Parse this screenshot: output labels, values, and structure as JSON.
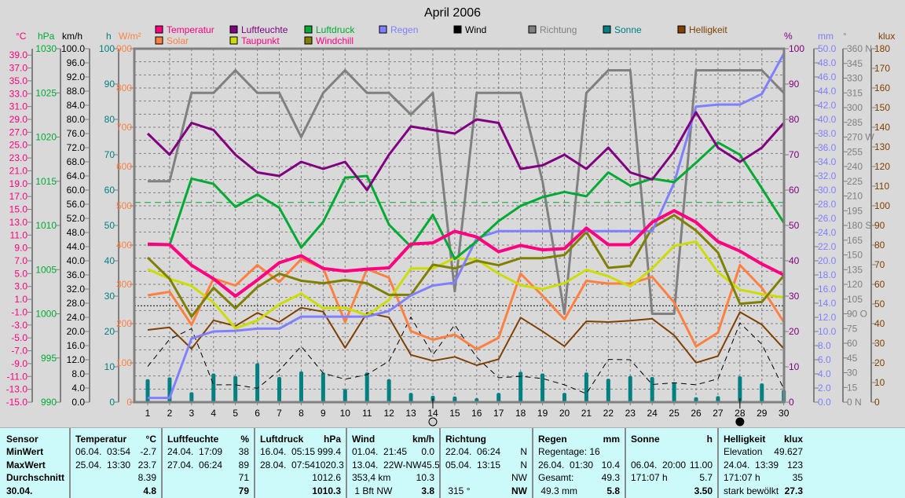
{
  "title": "April 2006",
  "chart_data": {
    "type": "line",
    "title": "April 2006",
    "x": [
      1,
      2,
      3,
      4,
      5,
      6,
      7,
      8,
      9,
      10,
      11,
      12,
      13,
      14,
      15,
      16,
      17,
      18,
      19,
      20,
      21,
      22,
      23,
      24,
      25,
      26,
      27,
      28,
      29,
      30
    ],
    "xlim": [
      1,
      30
    ],
    "grid": true,
    "legend_position": "top",
    "axes": {
      "temp": {
        "unit": "°C",
        "min": -15,
        "max": 40,
        "color": "#ff0080",
        "tick_labels": [
          "39.0",
          "37.0",
          "35.0",
          "33.0",
          "31.0",
          "29.0",
          "27.0",
          "25.0",
          "23.0",
          "21.0",
          "19.0",
          "17.0",
          "15.0",
          "13.0",
          "11.0",
          "9.0",
          "7.0",
          "5.0",
          "3.0",
          "1.0",
          "-1.0",
          "-3.0",
          "-5.0",
          "-7.0",
          "-9.0",
          "-11.0",
          "-13.0",
          "-15.0"
        ]
      },
      "pressure": {
        "unit": "hPa",
        "min": 990,
        "max": 1030,
        "color": "#00aa33",
        "tick_labels": [
          "1030",
          "1025",
          "1020",
          "1015",
          "1010",
          "1005",
          "1000",
          "995",
          "990"
        ]
      },
      "wind": {
        "unit": "km/h",
        "min": 0,
        "max": 100,
        "color": "#000000",
        "tick_labels": [
          "100.0",
          "96.0",
          "92.0",
          "88.0",
          "84.0",
          "80.0",
          "76.0",
          "72.0",
          "68.0",
          "64.0",
          "60.0",
          "56.0",
          "52.0",
          "48.0",
          "44.0",
          "40.0",
          "36.0",
          "32.0",
          "28.0",
          "24.0",
          "20.0",
          "16.0",
          "12.0",
          "8.0",
          "4.0",
          "0.0"
        ]
      },
      "sun": {
        "unit": "h",
        "min": 0,
        "max": 100,
        "color": "#008080",
        "tick_labels": [
          "100",
          "90",
          "80",
          "70",
          "60",
          "50",
          "40",
          "30",
          "20",
          "10",
          "0"
        ]
      },
      "solar": {
        "unit": "W/m²",
        "min": 0,
        "max": 900,
        "color": "#ff8040",
        "tick_labels": [
          "900",
          "800",
          "700",
          "600",
          "500",
          "400",
          "300",
          "200",
          "100",
          "0"
        ]
      },
      "humidity": {
        "unit": "%",
        "min": 0,
        "max": 100,
        "color": "#800080",
        "tick_labels": [
          "100",
          "90",
          "80",
          "70",
          "60",
          "50",
          "40",
          "30",
          "20",
          "10",
          "0"
        ]
      },
      "rain": {
        "unit": "mm",
        "min": 0,
        "max": 50,
        "color": "#8080ff",
        "tick_labels": [
          "50.0",
          "48.0",
          "46.0",
          "44.0",
          "42.0",
          "40.0",
          "38.0",
          "36.0",
          "34.0",
          "32.0",
          "30.0",
          "28.0",
          "26.0",
          "24.0",
          "22.0",
          "20.0",
          "18.0",
          "16.0",
          "14.0",
          "12.0",
          "10.0",
          "8.0",
          "6.0",
          "4.0",
          "2.0",
          "0.0"
        ]
      },
      "direction": {
        "unit": "°",
        "min": 0,
        "max": 360,
        "color": "#808080",
        "tick_labels": [
          "360 N",
          "345",
          "330",
          "315",
          "300",
          "285",
          "270 W",
          "255",
          "240",
          "225",
          "210",
          "195",
          "180 S",
          "165",
          "150",
          "135",
          "120",
          "105",
          "90 O",
          "75",
          "60",
          "45",
          "30",
          "15",
          "0   N"
        ]
      },
      "brightness": {
        "unit": "klux",
        "min": 0,
        "max": 180,
        "color": "#804000",
        "tick_labels": [
          "180",
          "170",
          "160",
          "150",
          "140",
          "130",
          "120",
          "110",
          "100",
          "90",
          "80",
          "70",
          "60",
          "50",
          "40",
          "30",
          "20",
          "10",
          "0"
        ]
      }
    },
    "series": [
      {
        "name": "Temperatur",
        "axis": "temp",
        "color": "#ff0080",
        "legend_text_color": "#ff0080",
        "style": "line",
        "values": [
          9.6,
          9.5,
          6.3,
          4.2,
          1.5,
          4.0,
          6.7,
          7.8,
          5.8,
          5.4,
          5.7,
          5.9,
          9.6,
          9.8,
          11.6,
          10.7,
          8.4,
          9.4,
          8.7,
          8.9,
          12.1,
          9.5,
          9.5,
          13.0,
          14.8,
          13.0,
          10.0,
          8.5,
          6.5,
          4.8
        ]
      },
      {
        "name": "Solar",
        "axis": "solar",
        "color": "#ff8040",
        "legend_text_color": "#ff8040",
        "style": "line",
        "values": [
          272,
          281,
          197,
          315,
          297,
          349,
          306,
          364,
          341,
          204,
          339,
          317,
          181,
          159,
          172,
          135,
          164,
          327,
          271,
          211,
          309,
          302,
          302,
          319,
          254,
          142,
          177,
          349,
          291,
          204
        ]
      },
      {
        "name": "Luftfeuchte",
        "axis": "humidity",
        "color": "#800080",
        "legend_text_color": "#800080",
        "style": "line",
        "values": [
          76,
          70,
          79,
          77,
          70,
          65,
          64,
          68,
          66,
          68,
          60,
          70,
          78,
          77,
          76,
          80,
          79,
          66,
          67,
          70,
          66,
          72,
          65,
          63,
          71,
          82,
          72,
          68,
          72,
          79
        ]
      },
      {
        "name": "Taupunkt",
        "axis": "temp",
        "color": "#ccdd00",
        "legend_text_color": "#ff0080",
        "style": "line",
        "values": [
          5.7,
          4.2,
          3.1,
          0.5,
          -3.5,
          -2.3,
          0.2,
          1.9,
          -0.4,
          -0.3,
          -1.5,
          0.9,
          5.8,
          5.8,
          7.4,
          7.2,
          5.0,
          3.2,
          2.6,
          3.5,
          5.6,
          4.6,
          3.0,
          5.8,
          9.3,
          10.0,
          5.2,
          2.5,
          1.8,
          1.3
        ]
      },
      {
        "name": "Luftdruck",
        "axis": "pressure",
        "color": "#00aa33",
        "legend_text_color": "#00aa33",
        "style": "line",
        "values": [
          1007.8,
          1007.8,
          1015.3,
          1014.7,
          1012.1,
          1013.5,
          1012.0,
          1007.5,
          1010.4,
          1015.4,
          1015.6,
          1010.1,
          1007.6,
          1011.2,
          1006.2,
          1008.2,
          1010.5,
          1012.2,
          1013.2,
          1013.8,
          1013.3,
          1016.0,
          1014.5,
          1015.3,
          1014.9,
          1017.1,
          1019.4,
          1018.0,
          1014.2,
          1010.3
        ]
      },
      {
        "name": "Windchill",
        "axis": "temp",
        "color": "#808000",
        "legend_text_color": "#ff0080",
        "style": "line",
        "values": [
          7.5,
          4.2,
          -1.7,
          2.8,
          -0.4,
          2.9,
          5.0,
          3.9,
          3.5,
          4.0,
          3.5,
          1.7,
          1.7,
          6.4,
          5.8,
          7.0,
          6.3,
          7.4,
          7.4,
          7.9,
          11.5,
          5.9,
          6.2,
          12.1,
          14.1,
          11.7,
          8.3,
          0.3,
          0.6,
          4.7
        ]
      },
      {
        "name": "Regen",
        "axis": "rain",
        "color": "#8080ff",
        "legend_text_color": "#8080ff",
        "style": "line",
        "values": [
          0.6,
          0.6,
          9.0,
          10.0,
          10.1,
          10.4,
          10.4,
          12.1,
          12.1,
          12.1,
          12.1,
          12.9,
          15.1,
          16.5,
          16.9,
          23.2,
          24.2,
          24.2,
          24.2,
          24.2,
          24.2,
          24.2,
          24.2,
          24.2,
          31.0,
          41.8,
          42.1,
          42.1,
          43.6,
          49.3
        ]
      },
      {
        "name": "Wind",
        "axis": "wind",
        "color": "#000000",
        "legend_text_color": "#000000",
        "style": "dashed",
        "values": [
          10.1,
          17.8,
          20.8,
          4.9,
          4.9,
          3.9,
          9.0,
          15.8,
          8.2,
          6.5,
          7.8,
          11.6,
          24.1,
          13.4,
          21.9,
          12.7,
          6.9,
          7.3,
          6.7,
          4.9,
          2.4,
          12.1,
          12.0,
          5.0,
          5.5,
          4.9,
          6.6,
          22.4,
          16.4,
          3.8
        ]
      },
      {
        "name": "Richtung",
        "axis": "direction",
        "color": "#808080",
        "legend_text_color": "#808080",
        "style": "line",
        "values": [
          225,
          225,
          315,
          315,
          338,
          315,
          315,
          270,
          315,
          338,
          315,
          315,
          293,
          315,
          113,
          315,
          315,
          315,
          225,
          90,
          315,
          338,
          338,
          90,
          90,
          338,
          338,
          338,
          338,
          315
        ]
      },
      {
        "name": "Sonne",
        "axis": "sun",
        "color": "#008080",
        "legend_text_color": "#008080",
        "style": "bar",
        "values": [
          6.5,
          7.0,
          2.8,
          8.1,
          7.4,
          11.0,
          7.1,
          8.7,
          8.4,
          3.7,
          8.4,
          6.5,
          2.6,
          1.8,
          1.6,
          1.1,
          2.6,
          8.6,
          8.1,
          2.6,
          8.4,
          6.6,
          7.4,
          7.1,
          5.6,
          1.4,
          1.7,
          7.3,
          5.3,
          3.5
        ]
      },
      {
        "name": "Helligkeit",
        "axis": "brightness",
        "color": "#804000",
        "legend_text_color": "#804000",
        "style": "line",
        "values": [
          36.8,
          38.1,
          27.2,
          41.7,
          38.8,
          45.5,
          40.8,
          48.1,
          46.1,
          27.7,
          45.5,
          43.2,
          24.1,
          21.1,
          23.1,
          18.8,
          21.9,
          43.1,
          36.1,
          28.5,
          41.2,
          40.8,
          41.5,
          42.5,
          34.1,
          20.1,
          23.5,
          45.9,
          39.5,
          27.3
        ]
      }
    ],
    "reference_lines": [
      {
        "axis": "pressure",
        "value": 1012.6,
        "color": "#00aa33"
      },
      {
        "axis": "temp",
        "value": 0,
        "color": "#000000"
      }
    ],
    "moon_phases": [
      {
        "day": 14,
        "phase": "full-moon"
      },
      {
        "day": 28,
        "phase": "new-moon"
      }
    ]
  },
  "table": {
    "columns": [
      {
        "label": "Sensor",
        "unit": "",
        "rows": [
          [
            "MinWert",
            ""
          ],
          [
            "MaxWert",
            ""
          ],
          [
            "Durchschnitt",
            ""
          ],
          [
            "30.04.",
            ""
          ]
        ]
      },
      {
        "label": "Temperatur",
        "unit": "°C",
        "rows": [
          [
            "06.04.  03:54",
            "-2.7"
          ],
          [
            "25.04.  13:30",
            "23.7"
          ],
          [
            "",
            "8.39"
          ],
          [
            "",
            "4.8"
          ]
        ]
      },
      {
        "label": "Luftfeuchte",
        "unit": "%",
        "rows": [
          [
            "24.04.  17:09",
            "38"
          ],
          [
            "27.04.  06:24",
            "89"
          ],
          [
            "",
            "71"
          ],
          [
            "",
            "79"
          ]
        ]
      },
      {
        "label": "Luftdruck",
        "unit": "hPa",
        "rows": [
          [
            "16.04.  05:15",
            "999.4"
          ],
          [
            "28.04.  07:54",
            "1020.3"
          ],
          [
            "",
            "1012.6"
          ],
          [
            "",
            "1010.3"
          ]
        ]
      },
      {
        "label": "Wind",
        "unit": "km/h",
        "rows": [
          [
            "01.04.  21:45",
            "0.0"
          ],
          [
            "13.04.  22W-NW",
            "45.5"
          ],
          [
            "353,4 km",
            "10.3"
          ],
          [
            " 1 Bft NW",
            "3.8"
          ]
        ]
      },
      {
        "label": "Richtung",
        "unit": "",
        "rows": [
          [
            "22.04.  06:24",
            "N"
          ],
          [
            "05.04.  13:15",
            "N"
          ],
          [
            "",
            "NW"
          ],
          [
            " 315 °",
            "NW"
          ]
        ]
      },
      {
        "label": "Regen",
        "unit": "mm",
        "rows": [
          [
            "Regentage: 16",
            ""
          ],
          [
            "26.04.  01:30",
            "10.4"
          ],
          [
            "Gesamt:",
            "49.3"
          ],
          [
            " 49.3 mm",
            "5.8"
          ]
        ]
      },
      {
        "label": "Sonne",
        "unit": "h",
        "rows": [
          [
            "",
            ""
          ],
          [
            "06.04.  20:00",
            "11.00"
          ],
          [
            "171:07 h",
            "5.7"
          ],
          [
            "",
            "3.50"
          ]
        ]
      },
      {
        "label": "Helligkeit",
        "unit": "klux",
        "rows": [
          [
            "Elevation",
            "49.627"
          ],
          [
            "24.04.  13:39",
            "123"
          ],
          [
            "171:07 h",
            "35"
          ],
          [
            "stark bewölkt",
            "27.3"
          ]
        ]
      }
    ]
  }
}
